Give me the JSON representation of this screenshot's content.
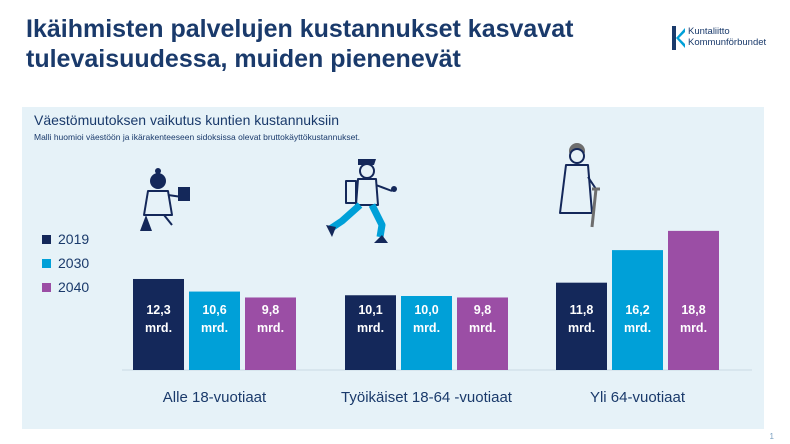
{
  "title": "Ikäihmisten palvelujen kustannukset kasvavat tulevaisuudessa, muiden pienenevät",
  "logo": {
    "line1": "Kuntaliitto",
    "line2": "Kommunförbundet"
  },
  "page_number": "1",
  "colors": {
    "2019": "#14285a",
    "2030": "#00a0d8",
    "2040": "#9b4ea5",
    "panel": "#e6f2f8",
    "text": "#1a3a6b"
  },
  "chart_data": {
    "type": "bar",
    "title": "Väestömuutoksen vaikutus kuntien kustannuksiin",
    "subtitle": "Malli huomioi väestöön ja ikärakenteeseen sidoksissa olevat bruttokäyttökustannukset.",
    "categories": [
      "Alle 18-vuotiaat",
      "Työikäiset 18-64 -vuotiaat",
      "Yli 64-vuotiaat"
    ],
    "series": [
      {
        "name": "2019",
        "color": "#14285a",
        "values": [
          12.3,
          10.1,
          11.8
        ],
        "labels": [
          "12,3",
          "10,1",
          "11,8"
        ]
      },
      {
        "name": "2030",
        "color": "#00a0d8",
        "values": [
          10.6,
          10.0,
          16.2
        ],
        "labels": [
          "10,6",
          "10,0",
          "16,2"
        ]
      },
      {
        "name": "2040",
        "color": "#9b4ea5",
        "values": [
          9.8,
          9.8,
          18.8
        ],
        "labels": [
          "9,8",
          "9,8",
          "18,8"
        ]
      }
    ],
    "value_unit": "mrd.",
    "legend_position": "left",
    "grid": false
  }
}
